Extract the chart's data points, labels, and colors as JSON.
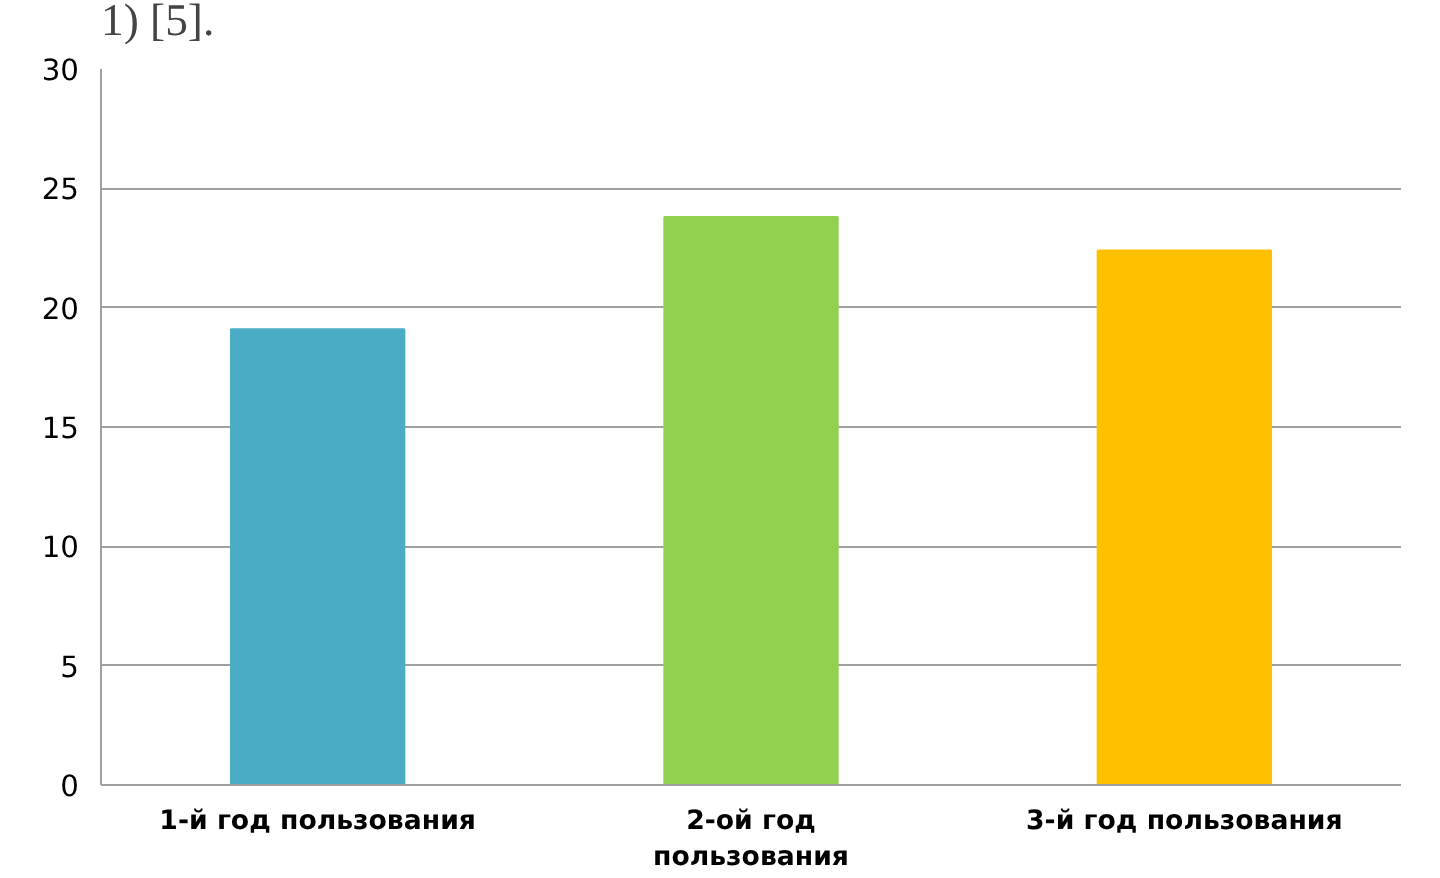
{
  "chart_data": {
    "type": "bar",
    "categories": [
      "1-й год пользования",
      "2-ой год пользования",
      "3-й год пользования"
    ],
    "values": [
      19.1,
      23.8,
      22.4
    ],
    "colors": [
      "#4bacc6",
      "#92d050",
      "#ffc000"
    ],
    "ylim": [
      0,
      30
    ],
    "yticks": [
      0,
      5,
      10,
      15,
      20,
      25,
      30
    ],
    "grid": "y",
    "annotations": [
      "1) [5]."
    ]
  }
}
